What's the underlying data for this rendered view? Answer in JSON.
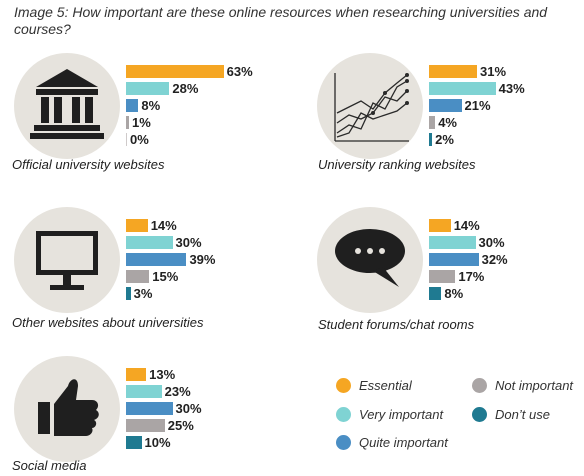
{
  "title": "Image 5: How important are these online resources when researching universities and courses?",
  "colors": {
    "essential": "#f5a623",
    "very_important": "#7fd3d3",
    "quite_important": "#4a8ec4",
    "not_important": "#aaa5a5",
    "dont_use": "#1f7a91"
  },
  "chart_data": {
    "type": "bar",
    "orientation": "horizontal",
    "title": "Image 5: How important are these online resources when researching universities and courses?",
    "categories": [
      "Essential",
      "Very important",
      "Quite important",
      "Not important",
      "Don’t use"
    ],
    "panels": [
      {
        "caption": "Official university websites",
        "icon": "university-building-icon",
        "values": [
          63,
          28,
          8,
          1,
          0
        ],
        "labels": [
          "63%",
          "28%",
          "8%",
          "1%",
          "0%"
        ]
      },
      {
        "caption": "University ranking websites",
        "icon": "ranking-chart-icon",
        "values": [
          31,
          43,
          21,
          4,
          2
        ],
        "labels": [
          "31%",
          "43%",
          "21%",
          "4%",
          "2%"
        ]
      },
      {
        "caption": "Other websites about universities",
        "icon": "computer-monitor-icon",
        "values": [
          14,
          30,
          39,
          15,
          3
        ],
        "labels": [
          "14%",
          "30%",
          "39%",
          "15%",
          "3%"
        ]
      },
      {
        "caption": "Student forums/chat rooms",
        "icon": "chat-bubble-icon",
        "values": [
          14,
          30,
          32,
          17,
          8
        ],
        "labels": [
          "14%",
          "30%",
          "32%",
          "17%",
          "8%"
        ]
      },
      {
        "caption": "Social media",
        "icon": "thumbs-up-icon",
        "values": [
          13,
          23,
          30,
          25,
          10
        ],
        "labels": [
          "13%",
          "23%",
          "30%",
          "25%",
          "10%"
        ]
      }
    ],
    "legend": [
      {
        "label": "Essential",
        "color": "#f5a623"
      },
      {
        "label": "Not important",
        "color": "#aaa5a5"
      },
      {
        "label": "Very important",
        "color": "#7fd3d3"
      },
      {
        "label": "Don’t use",
        "color": "#1f7a91"
      },
      {
        "label": "Quite important",
        "color": "#4a8ec4"
      }
    ]
  }
}
